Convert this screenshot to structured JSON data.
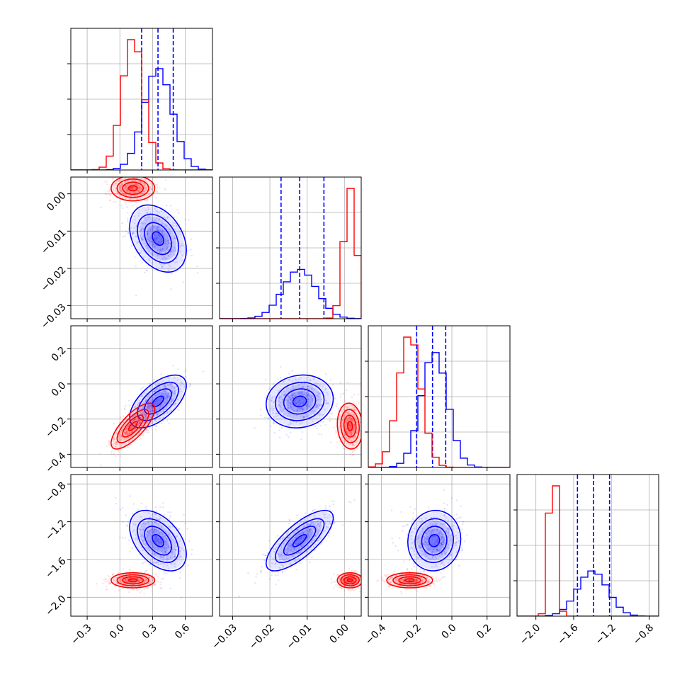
{
  "chart_data": {
    "type": "corner",
    "grid": true,
    "parameters": [
      {
        "lim": [
          -0.45,
          0.85
        ],
        "ticks": [
          "-0.3",
          "0.0",
          "0.3",
          "0.6"
        ],
        "tick_values": [
          -0.3,
          0.0,
          0.3,
          0.6
        ]
      },
      {
        "lim": [
          -0.0335,
          0.0045
        ],
        "ticks": [
          "-0.03",
          "-0.02",
          "-0.01",
          "0.00"
        ],
        "tick_values": [
          -0.03,
          -0.02,
          -0.01,
          0.0
        ]
      },
      {
        "lim": [
          -0.475,
          0.33
        ],
        "ticks": [
          "-0.4",
          "-0.2",
          "0.0",
          "0.2"
        ],
        "tick_values": [
          -0.4,
          -0.2,
          0.0,
          0.2
        ]
      },
      {
        "lim": [
          -2.2,
          -0.7
        ],
        "ticks": [
          "-2.0",
          "-1.6",
          "-1.2",
          "-0.8"
        ],
        "tick_values": [
          -2.0,
          -1.6,
          -1.2,
          -0.8
        ]
      }
    ],
    "y_ticks": [
      {
        "row": 1,
        "ticks": [
          "0.00",
          "-0.01",
          "-0.02",
          "-0.03"
        ],
        "tick_values": [
          0.0,
          -0.01,
          -0.02,
          -0.03
        ]
      },
      {
        "row": 2,
        "ticks": [
          "0.2",
          "0.0",
          "-0.2",
          "-0.4"
        ],
        "tick_values": [
          0.2,
          0.0,
          -0.2,
          -0.4
        ]
      },
      {
        "row": 3,
        "ticks": [
          "-0.8",
          "-1.2",
          "-1.6",
          "-2.0"
        ],
        "tick_values": [
          -0.8,
          -1.2,
          -1.6,
          -2.0
        ]
      }
    ],
    "series": [
      {
        "color": "#0000ff",
        "mean": [
          0.35,
          -0.012,
          -0.1,
          -1.4
        ],
        "sd": [
          0.13,
          0.0045,
          0.075,
          0.16
        ],
        "corr": {
          "0-1": -0.35,
          "0-2": 0.6,
          "0-3": -0.45,
          "1-2": 0.1,
          "1-3": 0.75,
          "2-3": 0.05
        },
        "quantiles": [
          [
            0.2,
            0.35,
            0.49
          ],
          [
            -0.017,
            -0.012,
            -0.0055
          ],
          [
            -0.2,
            -0.11,
            -0.035
          ],
          [
            -1.56,
            -1.39,
            -1.22
          ]
        ]
      },
      {
        "color": "#ff0000",
        "mean": [
          0.12,
          0.0015,
          -0.24,
          -1.82
        ],
        "sd": [
          0.1,
          0.0017,
          0.065,
          0.04
        ],
        "corr": {
          "0-1": 0.0,
          "0-2": 0.75,
          "0-3": 0.0,
          "1-2": -0.1,
          "1-3": 0.0,
          "2-3": 0.0
        },
        "quantiles": null
      }
    ]
  }
}
